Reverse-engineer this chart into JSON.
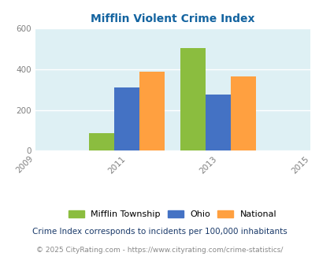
{
  "title": "Mifflin Violent Crime Index",
  "title_color": "#1464A0",
  "years": [
    2011,
    2013
  ],
  "mifflin": [
    85,
    505
  ],
  "ohio": [
    310,
    275
  ],
  "national": [
    390,
    365
  ],
  "mifflin_color": "#8BBD3F",
  "ohio_color": "#4472C4",
  "national_color": "#FFA040",
  "xlim": [
    2009,
    2015
  ],
  "ylim": [
    0,
    600
  ],
  "yticks": [
    0,
    200,
    400,
    600
  ],
  "xticks": [
    2009,
    2011,
    2013,
    2015
  ],
  "plot_bg_color": "#DEF0F4",
  "fig_bg_color": "#FFFFFF",
  "bar_width": 0.55,
  "legend_labels": [
    "Mifflin Township",
    "Ohio",
    "National"
  ],
  "footnote1": "Crime Index corresponds to incidents per 100,000 inhabitants",
  "footnote2": "© 2025 CityRating.com - https://www.cityrating.com/crime-statistics/",
  "grid_color": "#FFFFFF",
  "tick_label_color": "#808080"
}
